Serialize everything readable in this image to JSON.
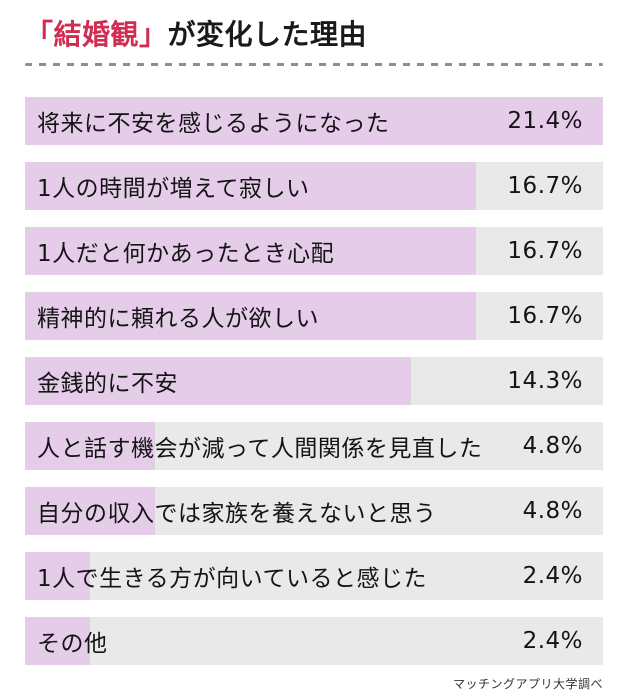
{
  "title": {
    "highlight": "「結婚観」",
    "rest": "が変化した理由"
  },
  "footer": {
    "source": "マッチングアプリ大学調べ"
  },
  "colors": {
    "accent_red": "#d12c52",
    "bar_fill": "#e5cde9",
    "bar_track": "#e9e9e9",
    "dash_line": "#8e8e8e",
    "text": "#141414"
  },
  "chart_data": {
    "type": "bar",
    "orientation": "horizontal",
    "title": "「結婚観」が変化した理由",
    "categories": [
      "将来に不安を感じるようになった",
      "1人の時間が増えて寂しい",
      "1人だと何かあったとき心配",
      "精神的に頼れる人が欲しい",
      "金銭的に不安",
      "人と話す機会が減って人間関係を見直した",
      "自分の収入では家族を養えないと思う",
      "1人で生きる方が向いていると感じた",
      "その他"
    ],
    "values": [
      21.4,
      16.7,
      16.7,
      16.7,
      14.3,
      4.8,
      4.8,
      2.4,
      2.4
    ],
    "value_labels": [
      "21.4%",
      "16.7%",
      "16.7%",
      "16.7%",
      "14.3%",
      "4.8%",
      "4.8%",
      "2.4%",
      "2.4%"
    ],
    "unit": "%",
    "scale_max": 21.4,
    "grid": false,
    "legend": false,
    "source": "マッチングアプリ大学調べ"
  }
}
